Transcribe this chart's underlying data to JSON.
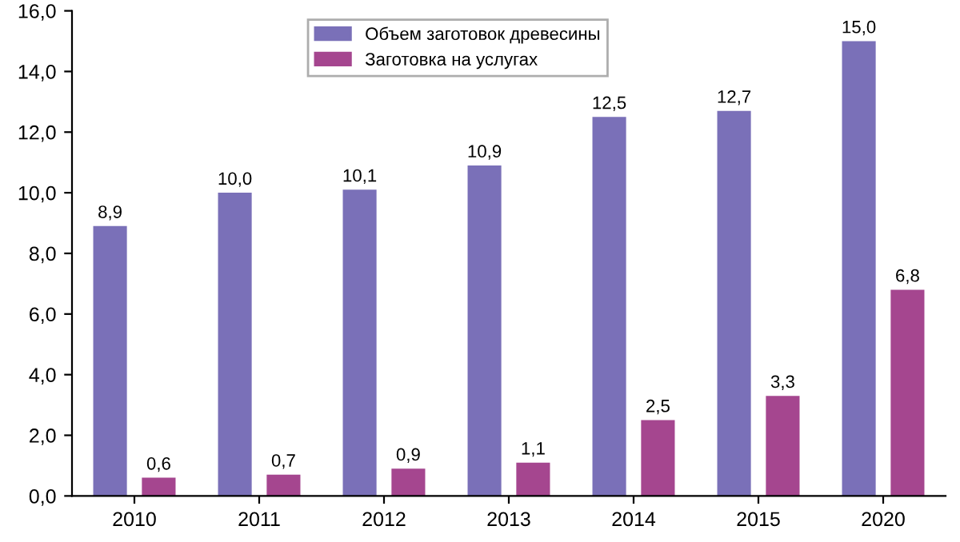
{
  "chart_data": {
    "type": "bar",
    "categories": [
      "2010",
      "2011",
      "2012",
      "2013",
      "2014",
      "2015",
      "2020"
    ],
    "series": [
      {
        "name": "Объем заготовок древесины",
        "color": "#7a70b8",
        "values": [
          8.9,
          10.0,
          10.1,
          10.9,
          12.5,
          12.7,
          15.0
        ],
        "value_labels": [
          "8,9",
          "10,0",
          "10,1",
          "10,9",
          "12,5",
          "12,7",
          "15,0"
        ]
      },
      {
        "name": "Заготовка на услугах",
        "color": "#a5468f",
        "values": [
          0.6,
          0.7,
          0.9,
          1.1,
          2.5,
          3.3,
          6.8
        ],
        "value_labels": [
          "0,6",
          "0,7",
          "0,9",
          "1,1",
          "2,5",
          "3,3",
          "6,8"
        ]
      }
    ],
    "ylim": [
      0,
      16
    ],
    "yticks": [
      {
        "value": 0,
        "label": "0,0"
      },
      {
        "value": 2,
        "label": "2,0"
      },
      {
        "value": 4,
        "label": "4,0"
      },
      {
        "value": 6,
        "label": "6,0"
      },
      {
        "value": 8,
        "label": "8,0"
      },
      {
        "value": 10,
        "label": "10,0"
      },
      {
        "value": 12,
        "label": "12,0"
      },
      {
        "value": 14,
        "label": "14,0"
      },
      {
        "value": 16,
        "label": "16,0"
      }
    ],
    "grid": false,
    "legend": "top left"
  }
}
